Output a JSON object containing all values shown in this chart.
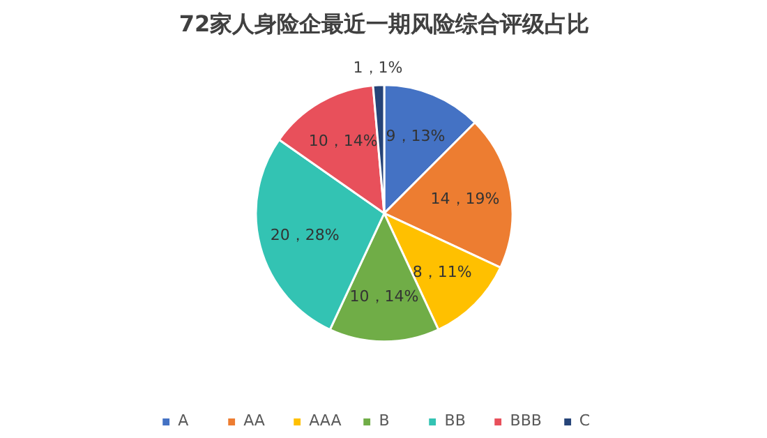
{
  "chart_data": {
    "type": "pie",
    "title": "72家人身险企最近一期风险综合评级占比",
    "categories": [
      "A",
      "AA",
      "AAA",
      "B",
      "BB",
      "BBB",
      "C"
    ],
    "values": [
      9,
      14,
      8,
      10,
      20,
      10,
      1
    ],
    "value_labels": [
      "9，13%",
      "14，19%",
      "8，11%",
      "10，14%",
      "20，28%",
      "10，14%",
      "1，1%"
    ],
    "colors": [
      "#4472c4",
      "#ed7d31",
      "#ffc000",
      "#70ad47",
      "#33c3b3",
      "#e8505b",
      "#264478"
    ],
    "legend": "bottom"
  }
}
